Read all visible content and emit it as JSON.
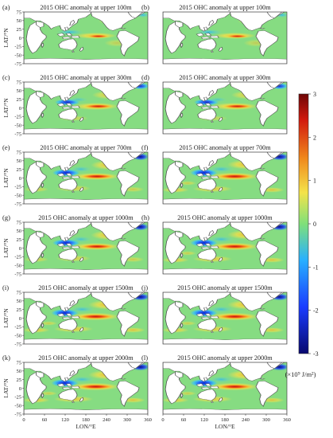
{
  "figure": {
    "colorbar": {
      "ticks": [
        "3",
        "2",
        "1",
        "0",
        "-1",
        "-2",
        "-3"
      ],
      "range": [
        -3,
        3
      ],
      "unit": "(×10⁹ J/m²)",
      "colors": [
        "#08086e",
        "#1a3cff",
        "#28b0ff",
        "#7fe07a",
        "#f4e34a",
        "#f08a1c",
        "#d21a0e",
        "#6e0606"
      ]
    },
    "axes": {
      "ylabel": "LAT/°N",
      "xlabel": "LON/°E",
      "yticks": [
        "75",
        "50",
        "25",
        "0",
        "-25",
        "-50",
        "-75"
      ],
      "xticks": [
        "0",
        "60",
        "120",
        "180",
        "240",
        "300",
        "360"
      ]
    },
    "panels": [
      {
        "label": "(a)",
        "title": "2015 OHC anomaly at upper 100m",
        "depth": 100
      },
      {
        "label": "(b)",
        "title": "2015 OHC anomaly at upper 100m",
        "depth": 100
      },
      {
        "label": "(c)",
        "title": "2015 OHC anomaly at upper 300m",
        "depth": 300
      },
      {
        "label": "(d)",
        "title": "2015 OHC anomaly at upper 300m",
        "depth": 300
      },
      {
        "label": "(e)",
        "title": "2015 OHC anomaly at upper 700m",
        "depth": 700
      },
      {
        "label": "(f)",
        "title": "2015 OHC anomaly at upper 700m",
        "depth": 700
      },
      {
        "label": "(g)",
        "title": "2015 OHC anomaly at upper 1000m",
        "depth": 1000
      },
      {
        "label": "(h)",
        "title": "2015 OHC anomaly at upper 1000m",
        "depth": 1000
      },
      {
        "label": "(i)",
        "title": "2015 OHC anomaly at upper 1500m",
        "depth": 1500
      },
      {
        "label": "(j)",
        "title": "2015 OHC anomaly at upper 1500m",
        "depth": 1500
      },
      {
        "label": "(k)",
        "title": "2015 OHC anomaly at upper 2000m",
        "depth": 2000
      },
      {
        "label": "(l)",
        "title": "2015 OHC anomaly at upper 2000m",
        "depth": 2000
      }
    ],
    "colors": {
      "ocean_base": "#86dc82",
      "land": "#ffffff",
      "coast": "#555555",
      "frame": "#444444"
    }
  }
}
